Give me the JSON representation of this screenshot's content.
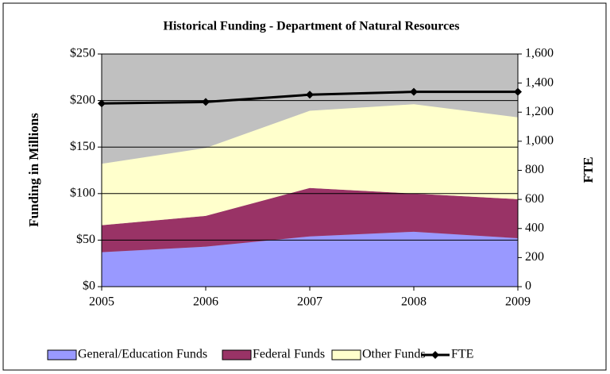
{
  "chart_data": {
    "type": "stacked-area-line",
    "title": "Historical Funding - Department of Natural Resources",
    "y_label": "Funding in Millions",
    "y2_label": "FTE",
    "categories": [
      "2005",
      "2006",
      "2007",
      "2008",
      "2009"
    ],
    "series": [
      {
        "name": "General/Education Funds",
        "color": "#9999ff",
        "values": [
          37,
          43,
          54,
          59,
          52
        ]
      },
      {
        "name": "Federal Funds",
        "color": "#993366",
        "values": [
          29,
          33,
          52,
          41,
          42
        ]
      },
      {
        "name": "Other Funds",
        "color": "#ffffcc",
        "values": [
          66,
          73,
          83,
          96,
          88
        ]
      },
      {
        "name": "FTE",
        "color": "#000000",
        "axis": "y2",
        "values": [
          1260,
          1270,
          1320,
          1340,
          1340
        ]
      }
    ],
    "ylim": [
      0,
      250
    ],
    "yticks": [
      {
        "value": 0,
        "label": "$0"
      },
      {
        "value": 50,
        "label": "$50"
      },
      {
        "value": 100,
        "label": "$100"
      },
      {
        "value": 150,
        "label": "$150"
      },
      {
        "value": 200,
        "label": "$200"
      },
      {
        "value": 250,
        "label": "$250"
      }
    ],
    "y2lim": [
      0,
      1600
    ],
    "y2ticks": [
      0,
      200,
      400,
      600,
      800,
      {
        "value": 1000,
        "label": "1,000"
      },
      {
        "value": 1200,
        "label": "1,200"
      },
      {
        "value": 1400,
        "label": "1,400"
      },
      {
        "value": 1600,
        "label": "1,600"
      }
    ],
    "grid": true,
    "plot_background": "#c0c0c0",
    "legend": "bottom"
  }
}
